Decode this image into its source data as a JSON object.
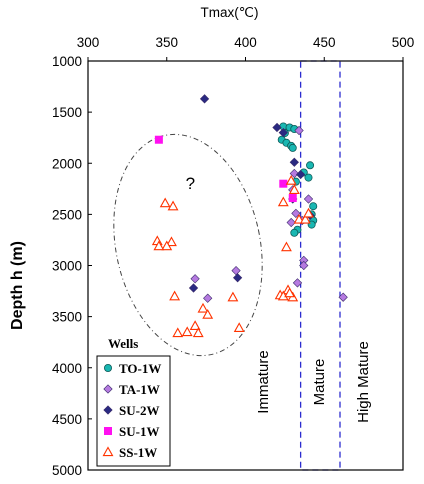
{
  "chart_data": {
    "type": "scatter",
    "title": "",
    "xlabel": "Tmax(℃)",
    "ylabel": "Depth h (m)",
    "xlim": [
      300,
      500
    ],
    "ylim": [
      1000,
      5000
    ],
    "y_inverted": true,
    "x_axis_position": "top",
    "x_ticks": [
      "300",
      "350",
      "400",
      "450",
      "500"
    ],
    "y_ticks": [
      "1000",
      "1500",
      "2000",
      "2500",
      "3000",
      "3500",
      "4000",
      "4500",
      "5000"
    ],
    "grid": false,
    "legend": {
      "title": "Wells",
      "placement": "bottom-left"
    },
    "zones": [
      {
        "label": "Immature",
        "x_range": [
          300,
          435
        ]
      },
      {
        "label": "Mature",
        "x_range": [
          435,
          460
        ]
      },
      {
        "label": "High Mature",
        "x_range": [
          460,
          500
        ]
      }
    ],
    "annotation": {
      "text": "?",
      "x": 365,
      "y": 2250
    },
    "series": [
      {
        "name": "TO-1W",
        "marker": "circle",
        "color": "#19b7b2",
        "points": [
          [
            424,
            1640
          ],
          [
            428,
            1650
          ],
          [
            431,
            1665
          ],
          [
            425,
            1705
          ],
          [
            423,
            1770
          ],
          [
            426,
            1800
          ],
          [
            429,
            1830
          ],
          [
            430,
            1850
          ],
          [
            441,
            2020
          ],
          [
            437,
            2090
          ],
          [
            440,
            2140
          ],
          [
            443,
            2420
          ],
          [
            442,
            2500
          ],
          [
            443,
            2560
          ],
          [
            442,
            2600
          ],
          [
            433,
            2650
          ],
          [
            431,
            2680
          ],
          [
            432,
            2180
          ]
        ]
      },
      {
        "name": "TA-1W",
        "marker": "diamond",
        "color": "#b57ae0",
        "points": [
          [
            434,
            1680
          ],
          [
            431,
            2100
          ],
          [
            430,
            2260
          ],
          [
            440,
            2350
          ],
          [
            432,
            2490
          ],
          [
            436,
            2560
          ],
          [
            437,
            2950
          ],
          [
            437,
            3000
          ],
          [
            433,
            3170
          ],
          [
            462,
            3310
          ],
          [
            376,
            3320
          ],
          [
            368,
            3130
          ],
          [
            394,
            3050
          ],
          [
            429,
            2580
          ]
        ]
      },
      {
        "name": "SU-2W",
        "marker": "diamond",
        "color": "#2a2a82",
        "points": [
          [
            374,
            1370
          ],
          [
            420,
            1650
          ],
          [
            431,
            1990
          ],
          [
            435,
            2110
          ],
          [
            441,
            2510
          ],
          [
            430,
            2350
          ],
          [
            367,
            3220
          ],
          [
            395,
            3120
          ],
          [
            424,
            1700
          ]
        ]
      },
      {
        "name": "SU-1W",
        "marker": "square",
        "color": "#ff10f0",
        "points": [
          [
            345,
            1770
          ],
          [
            424,
            2200
          ],
          [
            430,
            2340
          ]
        ]
      },
      {
        "name": "SS-1W",
        "marker": "triangle",
        "color": "#ff3300",
        "points": [
          [
            349,
            2390
          ],
          [
            354,
            2420
          ],
          [
            344,
            2760
          ],
          [
            353,
            2770
          ],
          [
            350,
            2810
          ],
          [
            345,
            2810
          ],
          [
            355,
            3300
          ],
          [
            373,
            3420
          ],
          [
            376,
            3480
          ],
          [
            392,
            3310
          ],
          [
            396,
            3610
          ],
          [
            357,
            3660
          ],
          [
            363,
            3650
          ],
          [
            368,
            3590
          ],
          [
            370,
            3660
          ],
          [
            427,
            3240
          ],
          [
            430,
            3310
          ],
          [
            422,
            3290
          ],
          [
            424,
            3300
          ],
          [
            426,
            2820
          ],
          [
            424,
            2380
          ],
          [
            429,
            2170
          ],
          [
            434,
            2550
          ],
          [
            438,
            2550
          ],
          [
            440,
            2490
          ],
          [
            431,
            2260
          ],
          [
            428,
            3270
          ]
        ]
      }
    ]
  }
}
